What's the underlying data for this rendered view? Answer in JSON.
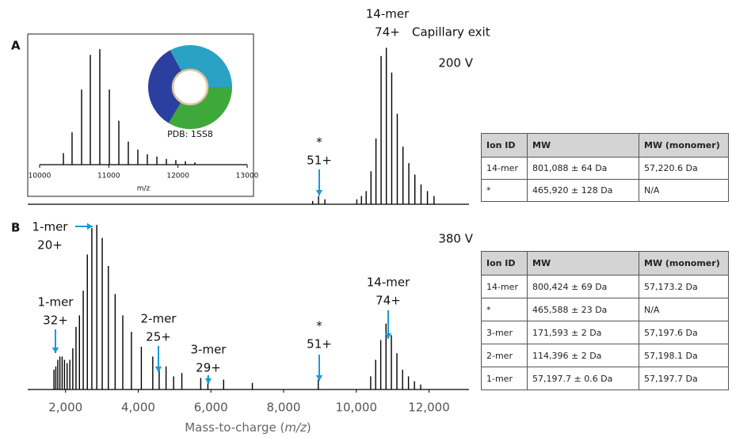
{
  "chart_data": [
    {
      "type": "spectrum",
      "label": "A",
      "color": "#000000",
      "xlim": [
        960,
        13100
      ],
      "ylim": [
        0,
        100
      ],
      "x": [
        8800,
        8960,
        9136,
        10014,
        10141,
        10271,
        10404,
        10541,
        10682,
        10826,
        10974,
        11127,
        11284,
        11445,
        11611,
        11781,
        11957,
        12138
      ],
      "values": [
        2,
        5,
        3,
        3,
        5,
        8,
        20,
        40,
        90,
        95,
        80,
        55,
        35,
        25,
        18,
        12,
        8,
        5
      ],
      "annotations": [
        {
          "lines": [
            "14-mer",
            "74+"
          ]
        },
        {
          "lines": [
            "Capillary exit"
          ]
        },
        {
          "lines": [
            "200 V"
          ]
        },
        {
          "lines": [
            "*",
            "51+"
          ]
        }
      ]
    },
    {
      "type": "spectrum",
      "color": "#000000",
      "xlim": [
        10000,
        13000
      ],
      "ylim": [
        0,
        100
      ],
      "xticks": [
        10000,
        11000,
        12000,
        13000
      ],
      "xlabel": "m/z",
      "x": [
        10344,
        10469,
        10607,
        10733,
        10870,
        11008,
        11145,
        11282,
        11420,
        11557,
        11695,
        11832,
        11969,
        12107,
        12244
      ],
      "values": [
        10,
        28,
        65,
        95,
        100,
        65,
        38,
        20,
        13,
        9,
        7,
        5,
        4,
        3,
        2
      ],
      "annotations": [
        {
          "lines": [
            "PDB: 1SS8"
          ]
        }
      ]
    },
    {
      "type": "spectrum",
      "label": "B",
      "color": "#000000",
      "xlim": [
        960,
        13100
      ],
      "ylim": [
        0,
        100
      ],
      "xticks": [
        {
          "value": 2000,
          "label": "2,000"
        },
        {
          "value": 4000,
          "label": "4,000"
        },
        {
          "value": 6000,
          "label": "6,000"
        },
        {
          "value": 8000,
          "label": "8,000"
        },
        {
          "value": 10000,
          "label": "10,000"
        },
        {
          "value": 12000,
          "label": "12,000"
        }
      ],
      "xlabel": [
        "Mass-to-charge (",
        "m/z",
        ")"
      ],
      "x": [
        1682,
        1733,
        1787,
        1845,
        1907,
        1972,
        2043,
        2118,
        2200,
        2288,
        2383,
        2487,
        2600,
        2724,
        2860,
        3010,
        3178,
        3365,
        3575,
        3813,
        4086,
        4400,
        4766,
        5200,
        5720,
        4576,
        4974,
        5917,
        6350,
        7140,
        8954,
        10395,
        10532,
        10672,
        10817,
        10965,
        11117,
        11273,
        11435,
        11600,
        11771
      ],
      "values": [
        12,
        14,
        18,
        20,
        20,
        18,
        16,
        18,
        25,
        38,
        45,
        60,
        82,
        98,
        100,
        92,
        75,
        58,
        45,
        35,
        26,
        20,
        14,
        10,
        7,
        12,
        8,
        8,
        6,
        4,
        6,
        8,
        18,
        30,
        40,
        33,
        22,
        12,
        8,
        5,
        3
      ],
      "annotations": [
        {
          "lines": [
            "1-mer",
            "20+"
          ]
        },
        {
          "lines": [
            "1-mer",
            "32+"
          ]
        },
        {
          "lines": [
            "2-mer",
            "25+"
          ]
        },
        {
          "lines": [
            "3-mer",
            "29+"
          ]
        },
        {
          "lines": [
            "*",
            "51+"
          ]
        },
        {
          "lines": [
            "14-mer",
            "74+"
          ]
        },
        {
          "lines": [
            "380 V"
          ]
        }
      ]
    }
  ],
  "tables": [
    {
      "columns": [
        "Ion ID",
        "MW",
        "MW (monomer)"
      ],
      "rows": [
        [
          "14-mer",
          "801,088 ± 64 Da",
          "57,220.6 Da"
        ],
        [
          "*",
          "465,920 ± 128 Da",
          "N/A"
        ]
      ]
    },
    {
      "columns": [
        "Ion ID",
        "MW",
        "MW (monomer)"
      ],
      "rows": [
        [
          "14-mer",
          "800,424 ± 69 Da",
          "57,173.2 Da"
        ],
        [
          "*",
          "465,588 ± 23 Da",
          "N/A"
        ],
        [
          "3-mer",
          "171,593 ± 2 Da",
          "57,197.6 Da"
        ],
        [
          "2-mer",
          "114,396 ± 2 Da",
          "57,198.1 Da"
        ],
        [
          "1-mer",
          "57,197.7 ± 0.6 Da",
          "57,197.7 Da"
        ]
      ]
    }
  ]
}
